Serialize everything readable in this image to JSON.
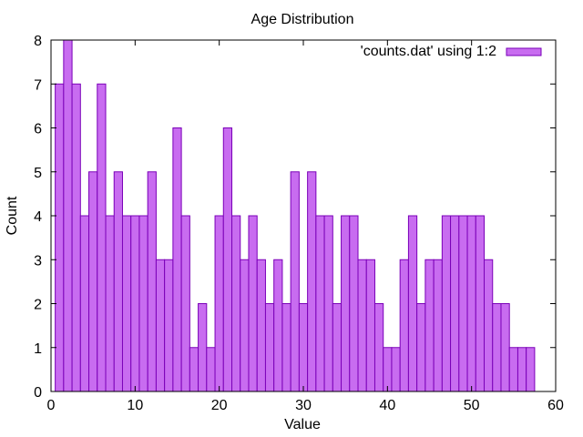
{
  "chart_data": {
    "type": "bar",
    "title": "Age Distribution",
    "xlabel": "Value",
    "ylabel": "Count",
    "xlim": [
      0,
      60
    ],
    "ylim": [
      0,
      8
    ],
    "xticks": [
      0,
      10,
      20,
      30,
      40,
      50,
      60
    ],
    "yticks": [
      0,
      1,
      2,
      3,
      4,
      5,
      6,
      7,
      8
    ],
    "grid": false,
    "legend": {
      "position": "top-right",
      "entries": [
        "'counts.dat' using 1:2"
      ]
    },
    "colors": {
      "fill": "#c86cf0",
      "stroke": "#7a00b8"
    },
    "series": [
      {
        "name": "'counts.dat' using 1:2",
        "x": [
          1,
          2,
          3,
          4,
          5,
          6,
          7,
          8,
          9,
          10,
          11,
          12,
          13,
          14,
          15,
          16,
          17,
          18,
          19,
          20,
          21,
          22,
          23,
          24,
          25,
          26,
          27,
          28,
          29,
          30,
          31,
          32,
          33,
          34,
          35,
          36,
          37,
          38,
          39,
          40,
          41,
          42,
          43,
          44,
          45,
          46,
          47,
          48,
          49,
          50,
          51,
          52,
          53,
          54,
          55,
          56,
          57
        ],
        "values": [
          7,
          8,
          7,
          4,
          5,
          7,
          4,
          5,
          4,
          4,
          4,
          5,
          3,
          3,
          6,
          4,
          1,
          2,
          1,
          4,
          6,
          4,
          3,
          4,
          3,
          2,
          3,
          2,
          5,
          2,
          5,
          4,
          4,
          2,
          4,
          4,
          3,
          3,
          2,
          1,
          1,
          3,
          4,
          2,
          3,
          3,
          4,
          4,
          4,
          4,
          4,
          3,
          2,
          2,
          1,
          1,
          1
        ]
      }
    ]
  }
}
